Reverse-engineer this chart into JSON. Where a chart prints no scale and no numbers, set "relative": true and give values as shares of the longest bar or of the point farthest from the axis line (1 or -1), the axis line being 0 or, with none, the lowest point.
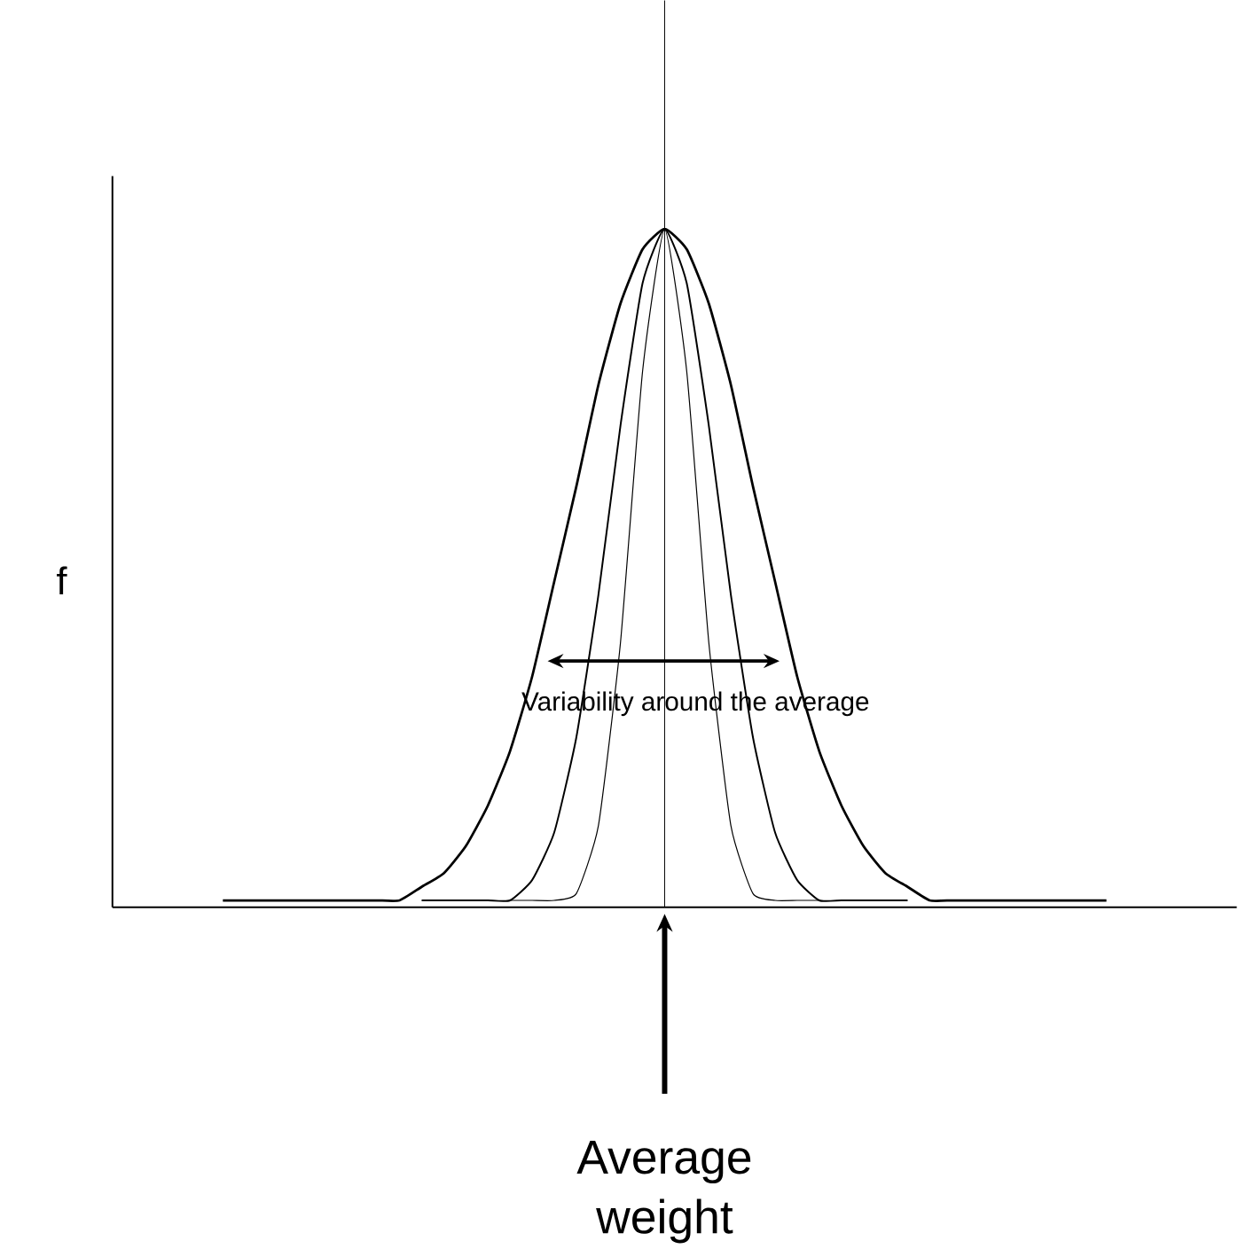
{
  "chart_data": {
    "type": "line",
    "relative": true,
    "ylabel": "f",
    "categories": [
      null,
      null,
      null,
      null,
      null,
      null,
      null,
      null,
      null,
      null,
      null,
      null,
      null,
      null,
      null,
      null,
      null,
      null,
      null,
      null,
      null,
      null,
      null,
      null,
      null,
      null,
      null,
      null,
      null,
      null,
      null,
      null,
      null,
      null,
      null,
      null,
      null,
      null,
      null,
      null,
      null
    ],
    "series": [
      {
        "color": "#000000",
        "values": [
          0.01,
          0.01,
          0.01,
          0.01,
          0.01,
          0.01,
          0.01,
          0.01,
          0.01,
          0.03,
          0.05,
          0.09,
          0.15,
          0.23,
          0.34,
          0.48,
          0.62,
          0.77,
          0.89,
          0.97,
          1,
          0.97,
          0.89,
          0.77,
          0.62,
          0.48,
          0.34,
          0.23,
          0.15,
          0.09,
          0.05,
          0.03,
          0.01,
          0.01,
          0.01,
          0.01,
          0.01,
          0.01,
          0.01,
          0.01,
          0.01
        ]
      },
      {
        "color": "#000000",
        "values": [
          null,
          null,
          null,
          null,
          null,
          null,
          null,
          null,
          null,
          0.01,
          0.01,
          0.01,
          0.01,
          0.01,
          0.04,
          0.11,
          0.25,
          0.46,
          0.71,
          0.92,
          1,
          0.92,
          0.71,
          0.46,
          0.25,
          0.11,
          0.04,
          0.01,
          0.01,
          0.01,
          0.01,
          0.01,
          null,
          null,
          null,
          null,
          null,
          null,
          null,
          null,
          null
        ]
      },
      {
        "color": "#000000",
        "values": [
          null,
          null,
          null,
          null,
          null,
          null,
          null,
          null,
          null,
          null,
          null,
          null,
          null,
          0.01,
          0.01,
          0.01,
          0.02,
          0.12,
          0.39,
          0.79,
          1,
          0.79,
          0.39,
          0.12,
          0.02,
          0.01,
          0.01,
          0.01,
          null,
          null,
          null,
          null,
          null,
          null,
          null,
          null,
          null,
          null,
          null,
          null,
          null
        ]
      }
    ],
    "annotations": [
      "Variability around the average",
      "Average weight"
    ]
  }
}
